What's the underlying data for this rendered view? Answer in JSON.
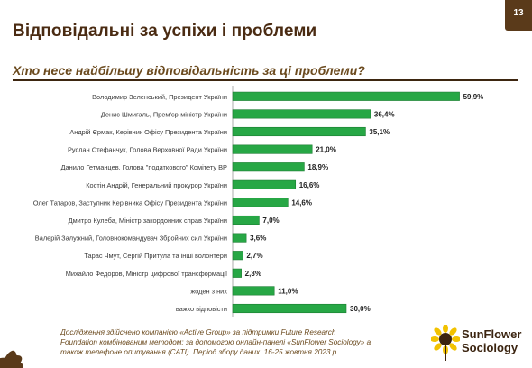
{
  "slide": {
    "title": "Відповідальні за успіхи і проблеми",
    "number": "13",
    "question": "Хто несе найбільшу відповідальність за ці проблеми?",
    "footnote": "Дослідження здійснено компанією «Active Group» за підтримки Future Research Foundation комбінованим методом: за допомогою онлайн-панелі «SunFlower Sociology» а також телефоне опитування (CATI). Період збору даних: 16-25 жовтня 2023 р.",
    "logo_line1": "SunFlower",
    "logo_line2": "Sociology"
  },
  "colors": {
    "bar": "#27a745",
    "bar_outline": "#1d7d33",
    "title": "#4a2b12",
    "accent_brown": "#5a3a1a",
    "logo_yellow": "#f2c200"
  },
  "chart_data": {
    "type": "bar",
    "orientation": "horizontal",
    "title": "",
    "xlabel": "",
    "ylabel": "",
    "xlim": [
      0,
      60
    ],
    "grid": false,
    "legend": "none",
    "categories": [
      "Володимир Зеленський, Президент України",
      "Денис Шмигаль, Прем'єр-міністр України",
      "Андрій Єрмак, Керівник Офісу Президента України",
      "Руслан Стефанчук, Голова Верховної Ради України",
      "Данило Гетманцев, Голова \"податкового\" Комітету ВР",
      "Костін Андрій, Генеральний прокурор України",
      "Олег Татаров, Заступник Керівника Офісу Президента України",
      "Дмитро Кулеба, Міністр закордонних справ України",
      "Валерій Залужний, Головнокомандувач Збройних сил України",
      "Тарас Чмут, Сергій Притула та інші волонтери",
      "Михайло Федоров, Міністр цифрової трансформації",
      "жоден з них",
      "важко відповісти"
    ],
    "values": [
      59.9,
      36.4,
      35.1,
      21.0,
      18.9,
      16.6,
      14.6,
      7.0,
      3.6,
      2.7,
      2.3,
      11.0,
      30.0
    ],
    "value_labels": [
      "59,9%",
      "36,4%",
      "35,1%",
      "21,0%",
      "18,9%",
      "16,6%",
      "14,6%",
      "7,0%",
      "3,6%",
      "2,7%",
      "2,3%",
      "11,0%",
      "30,0%"
    ]
  }
}
